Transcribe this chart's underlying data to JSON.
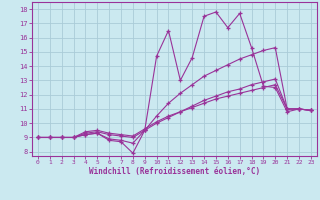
{
  "xlabel": "Windchill (Refroidissement éolien,°C)",
  "bg_color": "#cbe9f0",
  "line_color": "#993399",
  "grid_color": "#aaccd8",
  "x_ticks": [
    0,
    1,
    2,
    3,
    4,
    5,
    6,
    7,
    8,
    9,
    10,
    11,
    12,
    13,
    14,
    15,
    16,
    17,
    18,
    19,
    20,
    21,
    22,
    23
  ],
  "y_ticks": [
    8,
    9,
    10,
    11,
    12,
    13,
    14,
    15,
    16,
    17,
    18
  ],
  "ylim": [
    7.7,
    18.5
  ],
  "xlim": [
    -0.5,
    23.5
  ],
  "lines": [
    {
      "x": [
        0,
        1,
        2,
        3,
        4,
        5,
        6,
        7,
        8,
        9,
        10,
        11,
        12,
        13,
        14,
        15,
        16,
        17,
        18,
        19,
        20,
        21,
        22,
        23
      ],
      "y": [
        9.0,
        9.0,
        9.0,
        9.0,
        9.2,
        9.3,
        8.8,
        8.7,
        7.9,
        9.5,
        14.7,
        16.5,
        13.0,
        14.6,
        17.5,
        17.8,
        16.7,
        17.7,
        15.3,
        12.6,
        12.5,
        10.8,
        11.0,
        10.9
      ]
    },
    {
      "x": [
        0,
        1,
        2,
        3,
        4,
        5,
        6,
        7,
        8,
        9,
        10,
        11,
        12,
        13,
        14,
        15,
        16,
        17,
        18,
        19,
        20,
        21,
        22,
        23
      ],
      "y": [
        9.0,
        9.0,
        9.0,
        9.0,
        9.2,
        9.3,
        8.9,
        8.8,
        8.6,
        9.5,
        10.5,
        11.4,
        12.1,
        12.7,
        13.3,
        13.7,
        14.1,
        14.5,
        14.8,
        15.1,
        15.3,
        11.0,
        11.0,
        10.9
      ]
    },
    {
      "x": [
        0,
        1,
        2,
        3,
        4,
        5,
        6,
        7,
        8,
        9,
        10,
        11,
        12,
        13,
        14,
        15,
        16,
        17,
        18,
        19,
        20,
        21,
        22,
        23
      ],
      "y": [
        9.0,
        9.0,
        9.0,
        9.0,
        9.3,
        9.4,
        9.2,
        9.1,
        9.0,
        9.5,
        10.0,
        10.4,
        10.8,
        11.2,
        11.6,
        11.9,
        12.2,
        12.4,
        12.7,
        12.9,
        13.1,
        11.0,
        11.0,
        10.9
      ]
    },
    {
      "x": [
        0,
        1,
        2,
        3,
        4,
        5,
        6,
        7,
        8,
        9,
        10,
        11,
        12,
        13,
        14,
        15,
        16,
        17,
        18,
        19,
        20,
        21,
        22,
        23
      ],
      "y": [
        9.0,
        9.0,
        9.0,
        9.0,
        9.4,
        9.5,
        9.3,
        9.2,
        9.1,
        9.6,
        10.1,
        10.5,
        10.8,
        11.1,
        11.4,
        11.7,
        11.9,
        12.1,
        12.3,
        12.5,
        12.7,
        11.0,
        11.0,
        10.9
      ]
    }
  ]
}
